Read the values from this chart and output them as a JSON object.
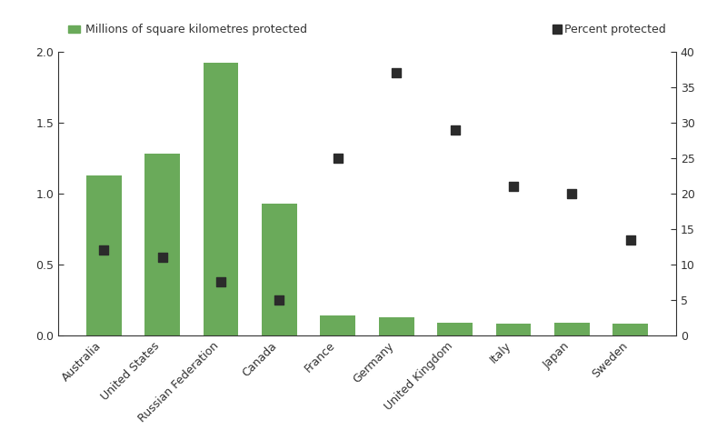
{
  "countries": [
    "Australia",
    "United States",
    "Russian Federation",
    "Canada",
    "France",
    "Germany",
    "United Kingdom",
    "Italy",
    "Japan",
    "Sweden"
  ],
  "bar_values": [
    1.13,
    1.28,
    1.92,
    0.93,
    0.14,
    0.13,
    0.09,
    0.08,
    0.09,
    0.08
  ],
  "dot_values": [
    12.0,
    11.0,
    7.5,
    5.0,
    25.0,
    37.0,
    29.0,
    21.0,
    20.0,
    13.5
  ],
  "bar_color": "#6aaa5a",
  "dot_color": "#2b2b2b",
  "bar_ylim": [
    0,
    2.0
  ],
  "dot_ylim": [
    0,
    40
  ],
  "bar_yticks": [
    0,
    0.5,
    1.0,
    1.5,
    2.0
  ],
  "dot_yticks": [
    0,
    5,
    10,
    15,
    20,
    25,
    30,
    35,
    40
  ],
  "legend_bar_label": "Millions of square kilometres protected",
  "legend_dot_label": "Percent protected",
  "background_color": "#ffffff",
  "axis_color": "#333333",
  "tick_color": "#333333",
  "figsize": [
    8.0,
    4.73
  ],
  "dpi": 100
}
